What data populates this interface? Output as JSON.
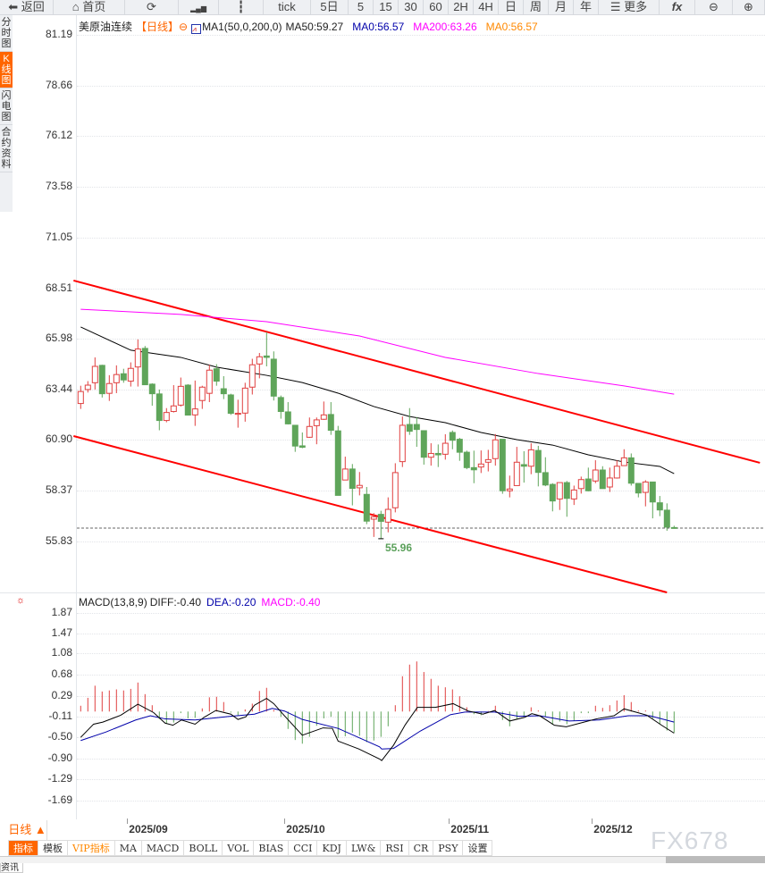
{
  "toolbar": {
    "items": [
      {
        "label": "返回",
        "icon": "back-arrow-icon"
      },
      {
        "label": "首页",
        "icon": "home-icon"
      },
      {
        "label": "",
        "icon": "refresh-icon"
      },
      {
        "label": "",
        "icon": "chart-bars-icon"
      },
      {
        "label": "",
        "icon": "candlestick-icon"
      },
      {
        "label": "tick"
      },
      {
        "label": "5日"
      },
      {
        "label": "5"
      },
      {
        "label": "15"
      },
      {
        "label": "30"
      },
      {
        "label": "60"
      },
      {
        "label": "2H"
      },
      {
        "label": "4H"
      },
      {
        "label": "日"
      },
      {
        "label": "周"
      },
      {
        "label": "月"
      },
      {
        "label": "年"
      },
      {
        "label": "更多",
        "icon": "menu-icon"
      },
      {
        "label": "fx",
        "icon": "formula-icon"
      },
      {
        "label": "",
        "icon": "zoom-out-icon"
      },
      {
        "label": "",
        "icon": "zoom-in-icon"
      }
    ]
  },
  "sidebar": {
    "items": [
      {
        "label": "分时图"
      },
      {
        "label": "K线图",
        "active": true
      },
      {
        "label": "闪电图"
      },
      {
        "label": "合约资料"
      }
    ]
  },
  "title": {
    "symbol": "美原油连续",
    "period": "【日线】",
    "ma_setting": "MA1(50,0,200,0)",
    "ma50": "MA50:59.27",
    "ma0": "MA0:56.57",
    "ma200": "MA200:63.26",
    "ma0b": "MA0:56.57"
  },
  "colors": {
    "up": "#e04040",
    "down": "#5fa55a",
    "ma50": "#000000",
    "ma200": "#ff00ff",
    "channel": "#ff0000",
    "diff": "#000000",
    "dea": "#0000aa",
    "accent": "#ff6600"
  },
  "price_axis": [
    "81.19",
    "78.66",
    "76.12",
    "73.58",
    "71.05",
    "68.51",
    "65.98",
    "63.44",
    "60.90",
    "58.37",
    "55.83"
  ],
  "macd_axis": [
    "1.87",
    "1.47",
    "1.08",
    "0.68",
    "0.29",
    "-0.11",
    "-0.50",
    "-0.90",
    "-1.29",
    "-1.69"
  ],
  "macd_title": {
    "label": "MACD(13,8,9)",
    "diff": "DIFF:-0.40",
    "dea": "DEA:-0.20",
    "macd": "MACD:-0.40"
  },
  "low_label": "55.96",
  "last_price": 56.49,
  "x_axis": [
    {
      "label": "2025/09",
      "index": 8
    },
    {
      "label": "2025/10",
      "index": 30
    },
    {
      "label": "2025/11",
      "index": 53
    },
    {
      "label": "2025/12",
      "index": 73
    }
  ],
  "period_selector": "日线 ▲",
  "indicator_tabs": [
    "指标",
    "模板",
    "VIP指标",
    "MA",
    "MACD",
    "BOLL",
    "VOL",
    "BIAS",
    "CCI",
    "KDJ",
    "LW&",
    "RSI",
    "CR",
    "PSY",
    "设置"
  ],
  "bottom_tab": "资讯",
  "watermark": "FX678",
  "chart_data": {
    "type": "candlestick",
    "ohlc": [
      [
        62.73,
        63.62,
        62.46,
        63.33
      ],
      [
        63.43,
        63.85,
        63.28,
        63.65
      ],
      [
        63.77,
        65.04,
        63.43,
        64.59
      ],
      [
        64.64,
        64.67,
        63.03,
        63.22
      ],
      [
        63.24,
        64.15,
        62.86,
        63.73
      ],
      [
        63.77,
        64.64,
        63.25,
        64.18
      ],
      [
        64.22,
        64.47,
        63.77,
        63.91
      ],
      [
        63.85,
        64.79,
        63.58,
        64.49
      ],
      [
        64.56,
        65.94,
        63.58,
        65.46
      ],
      [
        65.49,
        65.61,
        63.67,
        63.67
      ],
      [
        63.7,
        63.74,
        62.62,
        63.22
      ],
      [
        63.21,
        63.43,
        61.39,
        61.88
      ],
      [
        61.88,
        62.5,
        61.79,
        62.28
      ],
      [
        62.33,
        63.65,
        62.28,
        62.61
      ],
      [
        62.65,
        64.03,
        62.58,
        63.59
      ],
      [
        63.65,
        63.7,
        62.15,
        62.15
      ],
      [
        62.16,
        63.88,
        61.61,
        62.46
      ],
      [
        62.88,
        63.62,
        62.46,
        63.55
      ],
      [
        63.24,
        64.67,
        62.8,
        64.4
      ],
      [
        64.47,
        64.7,
        63.62,
        63.85
      ],
      [
        63.47,
        64.1,
        62.95,
        63.22
      ],
      [
        63.16,
        63.22,
        62.16,
        62.24
      ],
      [
        62.19,
        62.92,
        61.52,
        62.24
      ],
      [
        62.25,
        63.77,
        61.82,
        63.5
      ],
      [
        63.55,
        64.97,
        63.18,
        64.67
      ],
      [
        64.71,
        65.26,
        63.99,
        65.07
      ],
      [
        65.11,
        66.31,
        64.59,
        65.04
      ],
      [
        64.95,
        65.34,
        62.88,
        63.1
      ],
      [
        63.03,
        63.13,
        61.97,
        62.33
      ],
      [
        62.31,
        62.8,
        61.68,
        61.71
      ],
      [
        61.64,
        61.64,
        60.31,
        60.6
      ],
      [
        60.61,
        61.28,
        60.49,
        60.54
      ],
      [
        61.04,
        62.03,
        61.01,
        61.58
      ],
      [
        61.62,
        62.03,
        60.69,
        61.91
      ],
      [
        61.94,
        62.83,
        61.91,
        62.16
      ],
      [
        62.18,
        62.8,
        61.16,
        61.39
      ],
      [
        61.36,
        61.61,
        58.13,
        58.13
      ],
      [
        58.9,
        60.07,
        58.9,
        59.45
      ],
      [
        59.45,
        59.7,
        57.63,
        58.48
      ],
      [
        58.51,
        59.3,
        58.13,
        58.63
      ],
      [
        58.18,
        58.55,
        56.69,
        56.84
      ],
      [
        56.94,
        57.24,
        56.05,
        57.06
      ],
      [
        57.18,
        57.36,
        55.96,
        56.83
      ],
      [
        56.79,
        58.03,
        56.28,
        57.43
      ],
      [
        57.51,
        59.74,
        57.28,
        59.27
      ],
      [
        59.82,
        62.08,
        59.55,
        61.64
      ],
      [
        61.68,
        62.5,
        61.16,
        61.34
      ],
      [
        61.68,
        62.05,
        60.56,
        61.43
      ],
      [
        61.37,
        61.37,
        59.67,
        60.04
      ],
      [
        60.04,
        60.74,
        59.62,
        60.23
      ],
      [
        60.23,
        60.68,
        59.55,
        60.16
      ],
      [
        60.19,
        61.19,
        59.92,
        60.74
      ],
      [
        61.28,
        61.38,
        60.44,
        60.89
      ],
      [
        60.94,
        61.01,
        59.86,
        60.29
      ],
      [
        60.29,
        60.37,
        59.44,
        59.52
      ],
      [
        59.52,
        60.37,
        58.74,
        59.41
      ],
      [
        59.55,
        60.38,
        59.25,
        59.7
      ],
      [
        59.79,
        60.41,
        59.33,
        59.92
      ],
      [
        59.97,
        61.2,
        59.62,
        60.91
      ],
      [
        60.94,
        60.94,
        58.21,
        58.36
      ],
      [
        58.36,
        59.12,
        58.03,
        58.45
      ],
      [
        58.62,
        60.56,
        58.62,
        59.79
      ],
      [
        59.67,
        60.34,
        58.77,
        59.59
      ],
      [
        59.59,
        60.74,
        59.19,
        60.41
      ],
      [
        60.38,
        60.61,
        58.58,
        59.28
      ],
      [
        59.27,
        60.04,
        58.59,
        58.65
      ],
      [
        58.68,
        58.74,
        57.33,
        57.85
      ],
      [
        57.95,
        58.77,
        57.4,
        58.77
      ],
      [
        58.77,
        58.85,
        57.06,
        57.98
      ],
      [
        57.95,
        58.62,
        57.65,
        58.4
      ],
      [
        58.47,
        59.07,
        58.22,
        58.92
      ],
      [
        58.95,
        59.52,
        58.33,
        58.36
      ],
      [
        58.85,
        59.89,
        58.74,
        59.4
      ],
      [
        59.4,
        59.59,
        58.47,
        58.47
      ],
      [
        58.55,
        59.52,
        58.3,
        59.0
      ],
      [
        59.0,
        59.89,
        58.97,
        59.59
      ],
      [
        59.62,
        60.44,
        59.62,
        60.01
      ],
      [
        60.01,
        60.23,
        58.62,
        58.74
      ],
      [
        58.73,
        58.74,
        58.03,
        58.25
      ],
      [
        58.28,
        58.89,
        57.58,
        58.8
      ],
      [
        58.8,
        58.8,
        56.98,
        57.8
      ],
      [
        57.76,
        58.1,
        57.09,
        57.4
      ],
      [
        57.39,
        57.73,
        56.36,
        56.54
      ],
      [
        56.52,
        56.61,
        56.46,
        56.49
      ]
    ],
    "ma50": [
      [
        1,
        66.56
      ],
      [
        8,
        65.4
      ],
      [
        15,
        65.04
      ],
      [
        20,
        64.55
      ],
      [
        27,
        64.14
      ],
      [
        32,
        63.78
      ],
      [
        37,
        63.25
      ],
      [
        42,
        62.58
      ],
      [
        47,
        62.08
      ],
      [
        52,
        61.77
      ],
      [
        57,
        61.28
      ],
      [
        62,
        60.92
      ],
      [
        67,
        60.65
      ],
      [
        72,
        60.16
      ],
      [
        77,
        59.8
      ],
      [
        82,
        59.58
      ],
      [
        84,
        59.22
      ]
    ],
    "ma200": [
      [
        1,
        67.45
      ],
      [
        15,
        67.19
      ],
      [
        27,
        66.83
      ],
      [
        40,
        66.11
      ],
      [
        52,
        65.04
      ],
      [
        65,
        64.23
      ],
      [
        77,
        63.61
      ],
      [
        84,
        63.2
      ]
    ],
    "channel_upper": [
      [
        0,
        68.89
      ],
      [
        96,
        59.76
      ]
    ],
    "channel_lower": [
      [
        0,
        61.1
      ],
      [
        83,
        53.27
      ]
    ],
    "macd_hist": [
      0.11,
      0.26,
      0.49,
      0.38,
      0.4,
      0.42,
      0.4,
      0.43,
      0.55,
      0.33,
      0.12,
      -0.14,
      -0.23,
      -0.21,
      -0.03,
      -0.13,
      -0.12,
      0.06,
      0.27,
      0.28,
      0.18,
      -0.02,
      -0.07,
      0.04,
      0.15,
      0.39,
      0.45,
      0.03,
      -0.1,
      -0.33,
      -0.54,
      -0.61,
      -0.48,
      -0.27,
      -0.13,
      -0.1,
      -0.5,
      -0.47,
      -0.4,
      -0.46,
      -0.58,
      -0.55,
      -0.48,
      -0.28,
      0.12,
      0.67,
      0.89,
      0.95,
      0.75,
      0.62,
      0.49,
      0.46,
      0.42,
      0.29,
      0.08,
      -0.05,
      -0.07,
      0.01,
      0.11,
      -0.16,
      -0.28,
      -0.14,
      -0.08,
      0.08,
      0.02,
      -0.1,
      -0.25,
      -0.19,
      -0.24,
      -0.18,
      -0.03,
      -0.03,
      0.11,
      0.07,
      0.12,
      0.21,
      0.31,
      0.18,
      0.02,
      0.02,
      -0.13,
      -0.23,
      -0.36,
      -0.4
    ],
    "diff": [
      [
        1,
        -0.49
      ],
      [
        2.8,
        -0.24
      ],
      [
        4.1,
        -0.2
      ],
      [
        6.6,
        -0.07
      ],
      [
        9,
        0.14
      ],
      [
        11.2,
        -0.02
      ],
      [
        12.8,
        -0.22
      ],
      [
        13.9,
        -0.26
      ],
      [
        15.1,
        -0.16
      ],
      [
        17,
        -0.24
      ],
      [
        18.25,
        -0.11
      ],
      [
        19.9,
        0.02
      ],
      [
        22,
        -0.05
      ],
      [
        23,
        -0.15
      ],
      [
        24.1,
        -0.1
      ],
      [
        25.3,
        0.12
      ],
      [
        27,
        0.25
      ],
      [
        28,
        0.15
      ],
      [
        29.5,
        -0.08
      ],
      [
        32,
        -0.45
      ],
      [
        34.9,
        -0.31
      ],
      [
        36.2,
        -0.32
      ],
      [
        37,
        -0.56
      ],
      [
        39.9,
        -0.71
      ],
      [
        42.8,
        -0.9
      ],
      [
        43.1,
        -0.93
      ],
      [
        44.75,
        -0.64
      ],
      [
        46.4,
        -0.25
      ],
      [
        48.1,
        0.08
      ],
      [
        50.6,
        0.08
      ],
      [
        53.1,
        0.15
      ],
      [
        55.2,
        0.01
      ],
      [
        57.25,
        -0.05
      ],
      [
        58.9,
        0.02
      ],
      [
        61,
        -0.18
      ],
      [
        63.1,
        -0.11
      ],
      [
        64.1,
        -0.04
      ],
      [
        65.2,
        -0.08
      ],
      [
        67.25,
        -0.26
      ],
      [
        68.9,
        -0.29
      ],
      [
        71.4,
        -0.2
      ],
      [
        73.1,
        -0.14
      ],
      [
        75.6,
        -0.08
      ],
      [
        77,
        0.05
      ],
      [
        78.9,
        -0.02
      ],
      [
        80.2,
        -0.07
      ],
      [
        82.25,
        -0.26
      ],
      [
        84,
        -0.41
      ]
    ],
    "dea": [
      [
        1,
        -0.55
      ],
      [
        4.5,
        -0.39
      ],
      [
        8.7,
        -0.16
      ],
      [
        10.75,
        -0.08
      ],
      [
        12.8,
        -0.14
      ],
      [
        17,
        -0.16
      ],
      [
        21.2,
        -0.1
      ],
      [
        25.3,
        -0.05
      ],
      [
        27.8,
        0.06
      ],
      [
        29.5,
        0.01
      ],
      [
        32,
        -0.15
      ],
      [
        37,
        -0.32
      ],
      [
        42.8,
        -0.67
      ],
      [
        43.1,
        -0.71
      ],
      [
        44.75,
        -0.7
      ],
      [
        48.5,
        -0.37
      ],
      [
        52.7,
        -0.06
      ],
      [
        54.75,
        -0.01
      ],
      [
        58.9,
        -0.01
      ],
      [
        62.25,
        -0.09
      ],
      [
        65.2,
        -0.08
      ],
      [
        69.3,
        -0.18
      ],
      [
        73.5,
        -0.16
      ],
      [
        77.6,
        -0.08
      ],
      [
        80.6,
        -0.08
      ],
      [
        84,
        -0.2
      ]
    ],
    "ylim": [
      55.83,
      81.19
    ],
    "macd_ylim": [
      -1.69,
      1.87
    ]
  }
}
